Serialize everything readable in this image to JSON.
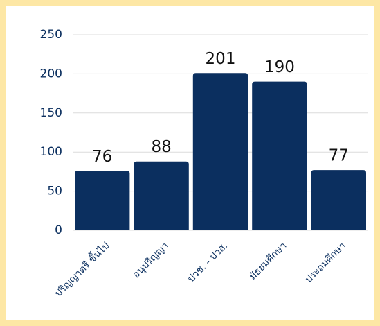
{
  "chart_data": {
    "type": "bar",
    "categories": [
      "ปริญญาตรี ขึ้นไป",
      "อนุปริญญา",
      "ปวช. - ปวส.",
      "มัธยมศึกษา",
      "ประถมศึกษา"
    ],
    "values": [
      76,
      88,
      201,
      190,
      77
    ],
    "color": "#0b2f5f",
    "ylim": [
      0,
      250
    ],
    "yticks": [
      0,
      50,
      100,
      150,
      200,
      250
    ],
    "grid": true
  }
}
